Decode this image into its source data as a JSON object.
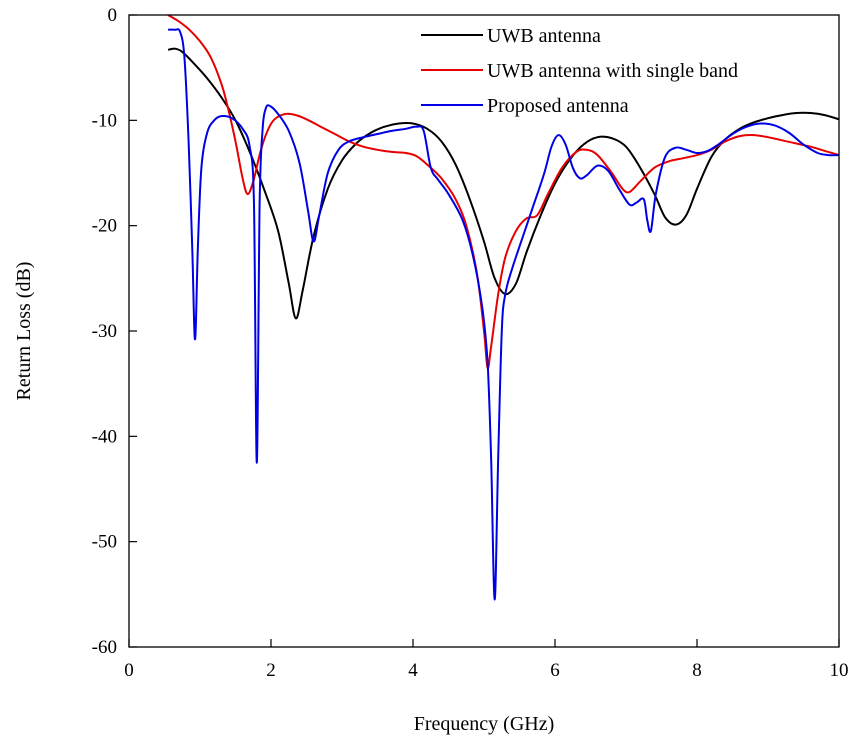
{
  "chart_data": {
    "type": "line",
    "title": "",
    "xlabel": "Frequency (GHz)",
    "ylabel": "Return Loss (dB)",
    "xlim": [
      0,
      10
    ],
    "ylim": [
      -60,
      0
    ],
    "x_ticks": [
      0,
      2,
      4,
      6,
      8,
      10
    ],
    "y_ticks": [
      0,
      -10,
      -20,
      -30,
      -40,
      -50,
      -60
    ],
    "grid": false,
    "legend_position": "top-right",
    "series": [
      {
        "name": "UWB antenna",
        "color": "#000000",
        "points": [
          [
            0.55,
            -3.3
          ],
          [
            0.65,
            -3.2
          ],
          [
            0.75,
            -3.5
          ],
          [
            0.9,
            -4.5
          ],
          [
            1.1,
            -6.0
          ],
          [
            1.3,
            -7.8
          ],
          [
            1.5,
            -10.0
          ],
          [
            1.7,
            -13.0
          ],
          [
            1.9,
            -16.5
          ],
          [
            2.1,
            -20.5
          ],
          [
            2.25,
            -25.5
          ],
          [
            2.35,
            -28.8
          ],
          [
            2.45,
            -26.0
          ],
          [
            2.6,
            -21.0
          ],
          [
            2.8,
            -16.5
          ],
          [
            3.0,
            -13.8
          ],
          [
            3.2,
            -12.2
          ],
          [
            3.4,
            -11.2
          ],
          [
            3.6,
            -10.6
          ],
          [
            3.8,
            -10.3
          ],
          [
            4.0,
            -10.3
          ],
          [
            4.2,
            -10.8
          ],
          [
            4.4,
            -12.0
          ],
          [
            4.6,
            -14.2
          ],
          [
            4.8,
            -17.5
          ],
          [
            5.0,
            -21.5
          ],
          [
            5.15,
            -25.0
          ],
          [
            5.3,
            -26.5
          ],
          [
            5.45,
            -25.5
          ],
          [
            5.6,
            -22.5
          ],
          [
            5.8,
            -19.0
          ],
          [
            6.0,
            -16.0
          ],
          [
            6.2,
            -13.8
          ],
          [
            6.4,
            -12.3
          ],
          [
            6.6,
            -11.6
          ],
          [
            6.8,
            -11.7
          ],
          [
            7.0,
            -12.5
          ],
          [
            7.2,
            -14.5
          ],
          [
            7.4,
            -17.0
          ],
          [
            7.55,
            -19.2
          ],
          [
            7.7,
            -19.9
          ],
          [
            7.85,
            -19.0
          ],
          [
            8.0,
            -16.5
          ],
          [
            8.2,
            -13.5
          ],
          [
            8.4,
            -11.8
          ],
          [
            8.6,
            -10.8
          ],
          [
            8.8,
            -10.2
          ],
          [
            9.0,
            -9.8
          ],
          [
            9.2,
            -9.5
          ],
          [
            9.4,
            -9.3
          ],
          [
            9.6,
            -9.3
          ],
          [
            9.8,
            -9.5
          ],
          [
            10.0,
            -9.9
          ]
        ]
      },
      {
        "name": "UWB antenna with single band",
        "color": "#e80000",
        "points": [
          [
            0.55,
            0.0
          ],
          [
            0.7,
            -0.6
          ],
          [
            0.85,
            -1.4
          ],
          [
            1.0,
            -2.5
          ],
          [
            1.15,
            -4.0
          ],
          [
            1.3,
            -6.5
          ],
          [
            1.4,
            -9.0
          ],
          [
            1.5,
            -12.0
          ],
          [
            1.6,
            -15.5
          ],
          [
            1.67,
            -17.0
          ],
          [
            1.75,
            -15.8
          ],
          [
            1.85,
            -13.0
          ],
          [
            1.95,
            -11.0
          ],
          [
            2.05,
            -9.9
          ],
          [
            2.2,
            -9.4
          ],
          [
            2.35,
            -9.5
          ],
          [
            2.5,
            -9.9
          ],
          [
            2.7,
            -10.6
          ],
          [
            2.9,
            -11.3
          ],
          [
            3.1,
            -12.0
          ],
          [
            3.3,
            -12.5
          ],
          [
            3.5,
            -12.8
          ],
          [
            3.7,
            -13.0
          ],
          [
            3.9,
            -13.1
          ],
          [
            4.05,
            -13.4
          ],
          [
            4.2,
            -14.2
          ],
          [
            4.4,
            -15.5
          ],
          [
            4.6,
            -17.5
          ],
          [
            4.75,
            -20.0
          ],
          [
            4.9,
            -24.5
          ],
          [
            5.0,
            -30.0
          ],
          [
            5.05,
            -33.5
          ],
          [
            5.1,
            -31.5
          ],
          [
            5.2,
            -26.5
          ],
          [
            5.3,
            -23.0
          ],
          [
            5.45,
            -20.5
          ],
          [
            5.6,
            -19.3
          ],
          [
            5.75,
            -19.0
          ],
          [
            5.9,
            -17.0
          ],
          [
            6.1,
            -14.5
          ],
          [
            6.3,
            -13.0
          ],
          [
            6.45,
            -12.8
          ],
          [
            6.6,
            -13.3
          ],
          [
            6.8,
            -15.0
          ],
          [
            6.95,
            -16.5
          ],
          [
            7.05,
            -16.8
          ],
          [
            7.2,
            -15.8
          ],
          [
            7.4,
            -14.5
          ],
          [
            7.6,
            -13.9
          ],
          [
            7.8,
            -13.6
          ],
          [
            8.0,
            -13.3
          ],
          [
            8.2,
            -12.8
          ],
          [
            8.4,
            -12.0
          ],
          [
            8.6,
            -11.5
          ],
          [
            8.8,
            -11.4
          ],
          [
            9.0,
            -11.6
          ],
          [
            9.2,
            -11.9
          ],
          [
            9.4,
            -12.2
          ],
          [
            9.6,
            -12.5
          ],
          [
            9.8,
            -12.9
          ],
          [
            10.0,
            -13.3
          ]
        ]
      },
      {
        "name": "Proposed antenna",
        "color": "#0000e6",
        "points": [
          [
            0.55,
            -1.4
          ],
          [
            0.65,
            -1.4
          ],
          [
            0.72,
            -1.6
          ],
          [
            0.78,
            -4.0
          ],
          [
            0.84,
            -12.0
          ],
          [
            0.89,
            -22.0
          ],
          [
            0.93,
            -30.8
          ],
          [
            0.97,
            -22.0
          ],
          [
            1.02,
            -14.5
          ],
          [
            1.1,
            -11.2
          ],
          [
            1.2,
            -10.0
          ],
          [
            1.3,
            -9.6
          ],
          [
            1.45,
            -9.8
          ],
          [
            1.6,
            -10.8
          ],
          [
            1.7,
            -12.5
          ],
          [
            1.76,
            -18.0
          ],
          [
            1.8,
            -42.5
          ],
          [
            1.84,
            -18.0
          ],
          [
            1.88,
            -11.0
          ],
          [
            1.93,
            -8.8
          ],
          [
            2.0,
            -8.7
          ],
          [
            2.1,
            -9.4
          ],
          [
            2.25,
            -11.0
          ],
          [
            2.4,
            -14.0
          ],
          [
            2.52,
            -18.5
          ],
          [
            2.6,
            -21.5
          ],
          [
            2.68,
            -19.0
          ],
          [
            2.8,
            -15.0
          ],
          [
            2.95,
            -12.8
          ],
          [
            3.1,
            -12.0
          ],
          [
            3.3,
            -11.6
          ],
          [
            3.5,
            -11.3
          ],
          [
            3.7,
            -11.0
          ],
          [
            3.9,
            -10.8
          ],
          [
            4.05,
            -10.6
          ],
          [
            4.15,
            -11.0
          ],
          [
            4.25,
            -14.5
          ],
          [
            4.35,
            -15.6
          ],
          [
            4.5,
            -17.0
          ],
          [
            4.7,
            -19.5
          ],
          [
            4.85,
            -23.0
          ],
          [
            4.98,
            -28.0
          ],
          [
            5.05,
            -33.0
          ],
          [
            5.1,
            -42.0
          ],
          [
            5.15,
            -55.5
          ],
          [
            5.2,
            -42.0
          ],
          [
            5.25,
            -30.0
          ],
          [
            5.3,
            -26.5
          ],
          [
            5.4,
            -24.0
          ],
          [
            5.55,
            -21.0
          ],
          [
            5.7,
            -18.0
          ],
          [
            5.85,
            -15.0
          ],
          [
            5.95,
            -12.5
          ],
          [
            6.05,
            -11.4
          ],
          [
            6.15,
            -12.3
          ],
          [
            6.25,
            -14.5
          ],
          [
            6.35,
            -15.5
          ],
          [
            6.45,
            -15.2
          ],
          [
            6.6,
            -14.3
          ],
          [
            6.75,
            -14.8
          ],
          [
            6.9,
            -16.5
          ],
          [
            7.05,
            -18.0
          ],
          [
            7.15,
            -17.8
          ],
          [
            7.25,
            -17.5
          ],
          [
            7.3,
            -19.5
          ],
          [
            7.35,
            -20.5
          ],
          [
            7.42,
            -17.0
          ],
          [
            7.55,
            -13.5
          ],
          [
            7.7,
            -12.6
          ],
          [
            7.85,
            -12.8
          ],
          [
            8.0,
            -13.1
          ],
          [
            8.15,
            -12.9
          ],
          [
            8.3,
            -12.3
          ],
          [
            8.5,
            -11.3
          ],
          [
            8.7,
            -10.6
          ],
          [
            8.9,
            -10.3
          ],
          [
            9.1,
            -10.5
          ],
          [
            9.3,
            -11.2
          ],
          [
            9.5,
            -12.3
          ],
          [
            9.7,
            -13.1
          ],
          [
            9.85,
            -13.3
          ],
          [
            10.0,
            -13.3
          ]
        ]
      }
    ]
  }
}
